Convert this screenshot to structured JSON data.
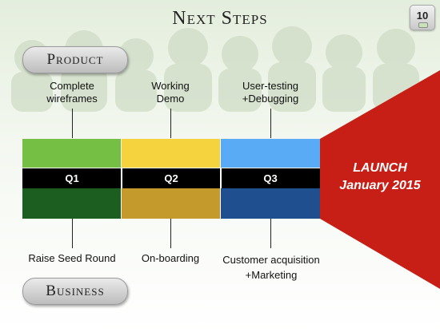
{
  "title": "Next Steps",
  "page_number": "10",
  "top_category": "Product",
  "bottom_category": "Business",
  "product_milestones": [
    {
      "line1": "Complete",
      "line2": "wireframes"
    },
    {
      "line1": "Working",
      "line2": "Demo"
    },
    {
      "line1": "User-testing",
      "line2": "+Debugging"
    }
  ],
  "quarters": [
    "Q1",
    "Q2",
    "Q3"
  ],
  "business_milestones": [
    {
      "line1": "Raise Seed Round",
      "line2": ""
    },
    {
      "line1": "On-boarding",
      "line2": ""
    },
    {
      "line1": "Customer  acquisition",
      "line2": "+Marketing"
    }
  ],
  "launch": {
    "line1": "LAUNCH",
    "line2": "January 2015"
  },
  "colors": {
    "product_blocks": [
      "#75bf45",
      "#f5d33e",
      "#5aabf5"
    ],
    "business_blocks": [
      "#1b5e20",
      "#c49a2c",
      "#1f4f8f"
    ],
    "quarter_bar": "#000000",
    "launch_funnel": "#c71f16"
  }
}
